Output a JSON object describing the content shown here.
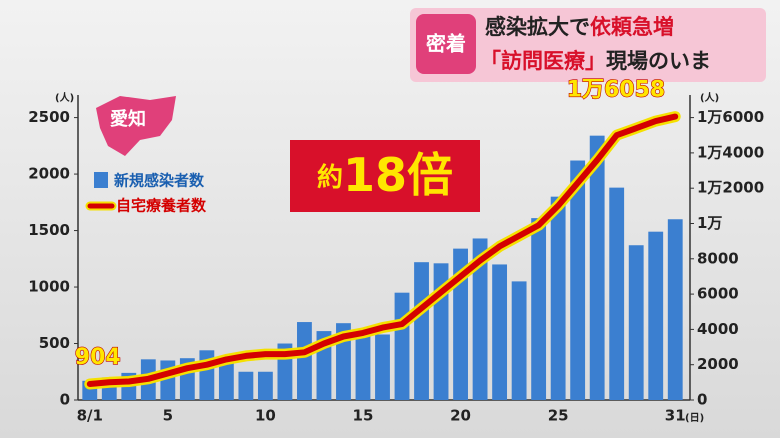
{
  "banner": {
    "tag": "密着",
    "headline": [
      "感染拡大で",
      "依頼急増"
    ],
    "subhead": [
      "「訪問医療」",
      "現場のいま"
    ]
  },
  "chart_data": {
    "type": "bar-line",
    "region": "愛知",
    "annotation": [
      "約",
      "18倍"
    ],
    "y_unit": "(人)",
    "y2_unit": "(人)",
    "x_unit": "(日)",
    "categories": [
      "8/1",
      null,
      null,
      null,
      "5",
      null,
      null,
      null,
      null,
      "10",
      null,
      null,
      null,
      null,
      "15",
      null,
      null,
      null,
      null,
      "20",
      null,
      null,
      null,
      null,
      "25",
      null,
      null,
      null,
      null,
      null,
      "31"
    ],
    "series": [
      {
        "name": "新規感染者数",
        "type": "bar",
        "color": "#3b7fd0",
        "values": [
          170,
          200,
          240,
          360,
          350,
          370,
          440,
          360,
          250,
          250,
          500,
          690,
          610,
          680,
          590,
          580,
          950,
          1220,
          1210,
          1340,
          1430,
          1200,
          1050,
          1610,
          1800,
          2120,
          2340,
          1880,
          1370,
          1490,
          1600
        ]
      },
      {
        "name": "自宅療養者数",
        "type": "line",
        "axis": "y2",
        "color": "#d40000",
        "values": [
          904,
          1000,
          1050,
          1200,
          1500,
          1800,
          2000,
          2300,
          2500,
          2600,
          2600,
          2700,
          3200,
          3600,
          3800,
          4100,
          4300,
          5200,
          6100,
          7000,
          7900,
          8700,
          9300,
          9900,
          11000,
          12300,
          13600,
          15000,
          15400,
          15800,
          16058
        ],
        "value_labels": [
          "904",
          null,
          null,
          null,
          null,
          null,
          null,
          null,
          null,
          null,
          null,
          null,
          null,
          null,
          null,
          null,
          null,
          null,
          null,
          null,
          null,
          null,
          null,
          null,
          null,
          null,
          null,
          null,
          null,
          null,
          "1万6058"
        ]
      }
    ],
    "ylim": [
      0,
      2700
    ],
    "yticks": [
      0,
      500,
      1000,
      1500,
      2000,
      2500
    ],
    "y2lim": [
      0,
      17280
    ],
    "y2ticks": [
      0,
      2000,
      4000,
      6000,
      8000,
      {
        "value": 10000,
        "label": "1万"
      },
      {
        "value": 12000,
        "label": "1万2000"
      },
      {
        "value": 14000,
        "label": "1万4000"
      },
      {
        "value": 16000,
        "label": "1万6000"
      }
    ],
    "grid": false
  }
}
